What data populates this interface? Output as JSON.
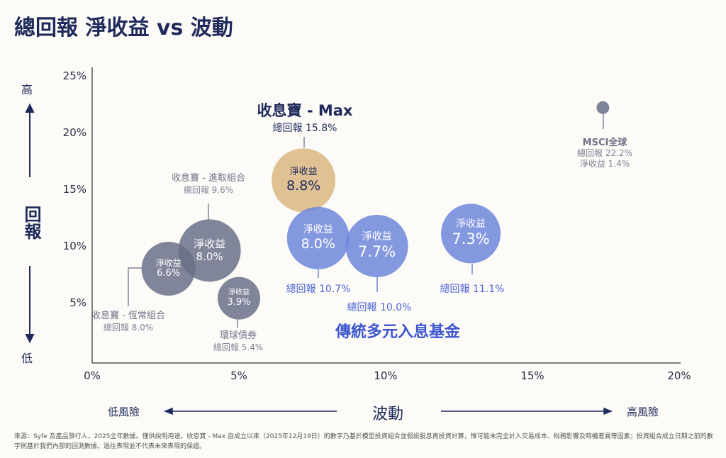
{
  "title": "總回報 淨收益 vs 波動",
  "chart_data": {
    "type": "scatter",
    "title": "總回報 淨收益 vs 波動",
    "xlabel": "波動",
    "ylabel": "回報",
    "xlim": [
      0,
      20
    ],
    "ylim": [
      0,
      25
    ],
    "x_ticks": [
      "0%",
      "5%",
      "10%",
      "15%",
      "20%"
    ],
    "y_ticks": [
      "5%",
      "10%",
      "15%",
      "20%",
      "25%"
    ],
    "y_high": "高",
    "y_low": "低",
    "x_low": "低風險",
    "x_high": "高風險",
    "net_label": "淨收益",
    "group_label": "傳統多元入息基金",
    "points": [
      {
        "name": "收息寶 - 恆常組合",
        "volatility": 2.6,
        "total_return": 8.0,
        "total_label": "總回報 8.0%",
        "net_yield": "6.6%",
        "color": "#6b7089"
      },
      {
        "name": "收息寶 - 進取組合",
        "volatility": 4.0,
        "total_return": 9.6,
        "total_label": "總回報 9.6%",
        "net_yield": "8.0%",
        "color": "#6b7089"
      },
      {
        "name": "環球債券",
        "volatility": 5.0,
        "total_return": 5.4,
        "total_label": "總回報 5.4%",
        "net_yield": "3.9%",
        "color": "#6b7089"
      },
      {
        "name": "收息寶 - Max",
        "volatility": 7.2,
        "total_return": 15.8,
        "total_label": "總回報 15.8%",
        "net_yield": "8.8%",
        "color": "#d9b682"
      },
      {
        "name": "傳統多元入息基金 A",
        "volatility": 7.7,
        "total_return": 10.7,
        "total_label": "總回報 10.7%",
        "net_yield": "8.0%",
        "color": "#6f86dc"
      },
      {
        "name": "傳統多元入息基金 B",
        "volatility": 9.7,
        "total_return": 10.0,
        "total_label": "總回報 10.0%",
        "net_yield": "7.7%",
        "color": "#6f86dc"
      },
      {
        "name": "傳統多元入息基金 C",
        "volatility": 12.9,
        "total_return": 11.1,
        "total_label": "總回報 11.1%",
        "net_yield": "7.3%",
        "color": "#6f86dc"
      },
      {
        "name": "MSCI全球",
        "volatility": 17.4,
        "total_return": 22.2,
        "total_label": "總回報 22.2%",
        "net_yield": "1.4%",
        "net_full": "淨收益 1.4%",
        "color": "#7f8397"
      }
    ]
  },
  "footnote": "來源：Syfe 及產品發行人，2025全年數據。僅供說明用途。收息寶 - Max 自成立以來（2025年12月19日）的數字乃基於模型投資組合並假設股息再投資計算，惟可能未完全計入交易成本、稅務影響及時機差異等因素；投資組合成立日期之前的數字則基於我們內部的回測數據。過往表現並不代表未來表現的保證。"
}
